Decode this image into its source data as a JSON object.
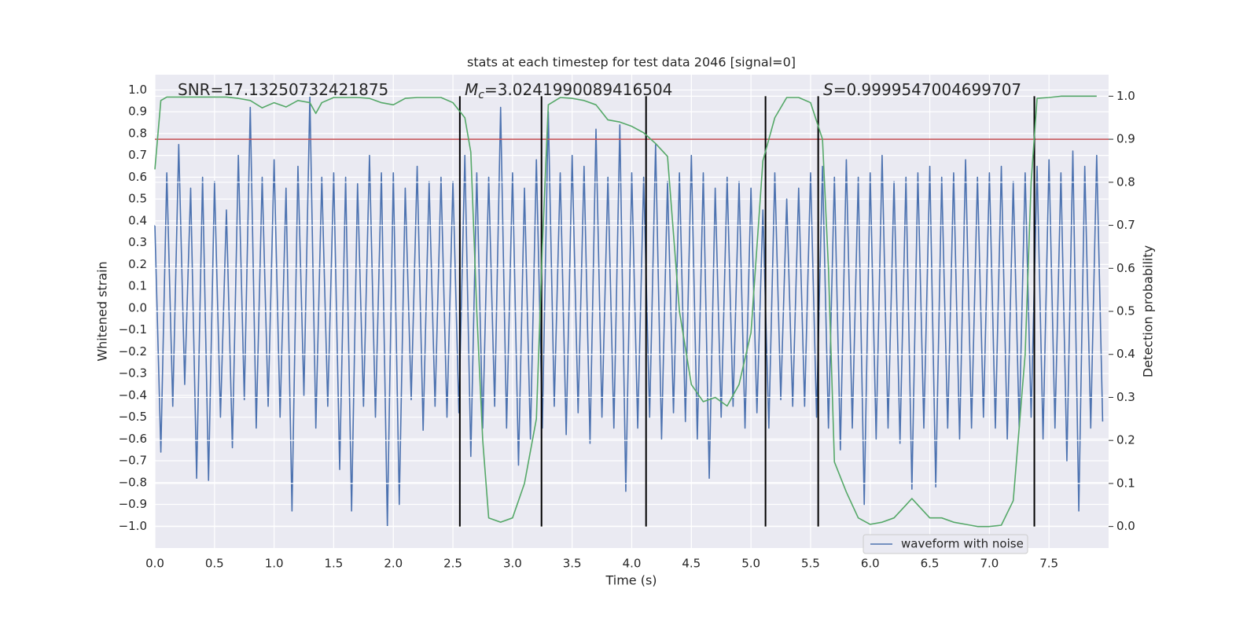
{
  "chart_data": {
    "type": "line",
    "title": "stats at each timestep for test data 2046 [signal=0]",
    "xlabel": "Time (s)",
    "ylabel": "Whitened strain",
    "y2label": "Detection probability",
    "xlim": [
      0,
      8
    ],
    "ylim": [
      -1.1,
      1.07
    ],
    "y2lim": [
      -0.05,
      1.05
    ],
    "xticks": [
      {
        "value": 0,
        "label": "0.0"
      },
      {
        "value": 0.5,
        "label": "0.5"
      },
      {
        "value": 1,
        "label": "1.0"
      },
      {
        "value": 1.5,
        "label": "1.5"
      },
      {
        "value": 2,
        "label": "2.0"
      },
      {
        "value": 2.5,
        "label": "2.5"
      },
      {
        "value": 3,
        "label": "3.0"
      },
      {
        "value": 3.5,
        "label": "3.5"
      },
      {
        "value": 4,
        "label": "4.0"
      },
      {
        "value": 4.5,
        "label": "4.5"
      },
      {
        "value": 5,
        "label": "5.0"
      },
      {
        "value": 5.5,
        "label": "5.5"
      },
      {
        "value": 6,
        "label": "6.0"
      },
      {
        "value": 6.5,
        "label": "6.5"
      },
      {
        "value": 7,
        "label": "7.0"
      },
      {
        "value": 7.5,
        "label": "7.5"
      }
    ],
    "yticks": [
      {
        "value": -1,
        "label": "−1.0"
      },
      {
        "value": -0.9,
        "label": "−0.9"
      },
      {
        "value": -0.8,
        "label": "−0.8"
      },
      {
        "value": -0.7,
        "label": "−0.7"
      },
      {
        "value": -0.6,
        "label": "−0.6"
      },
      {
        "value": -0.5,
        "label": "−0.5"
      },
      {
        "value": -0.4,
        "label": "−0.4"
      },
      {
        "value": -0.3,
        "label": "−0.3"
      },
      {
        "value": -0.2,
        "label": "−0.2"
      },
      {
        "value": -0.1,
        "label": "−0.1"
      },
      {
        "value": 0,
        "label": "0.0"
      },
      {
        "value": 0.1,
        "label": "0.1"
      },
      {
        "value": 0.2,
        "label": "0.2"
      },
      {
        "value": 0.3,
        "label": "0.3"
      },
      {
        "value": 0.4,
        "label": "0.4"
      },
      {
        "value": 0.5,
        "label": "0.5"
      },
      {
        "value": 0.6,
        "label": "0.6"
      },
      {
        "value": 0.7,
        "label": "0.7"
      },
      {
        "value": 0.8,
        "label": "0.8"
      },
      {
        "value": 0.9,
        "label": "0.9"
      },
      {
        "value": 1,
        "label": "1.0"
      }
    ],
    "y2ticks": [
      {
        "value": 0,
        "label": "0.0"
      },
      {
        "value": 0.1,
        "label": "0.1"
      },
      {
        "value": 0.2,
        "label": "0.2"
      },
      {
        "value": 0.3,
        "label": "0.3"
      },
      {
        "value": 0.4,
        "label": "0.4"
      },
      {
        "value": 0.5,
        "label": "0.5"
      },
      {
        "value": 0.6,
        "label": "0.6"
      },
      {
        "value": 0.7,
        "label": "0.7"
      },
      {
        "value": 0.8,
        "label": "0.8"
      },
      {
        "value": 0.9,
        "label": "0.9"
      },
      {
        "value": 1,
        "label": "1.0"
      }
    ],
    "grid": true,
    "background": "#eaeaf2",
    "legend": "lower right",
    "series": [
      {
        "name": "waveform with noise",
        "color": "#4c72b0",
        "x": [
          0,
          0.05,
          0.1,
          0.15,
          0.2,
          0.25,
          0.3,
          0.35,
          0.4,
          0.45,
          0.5,
          0.55,
          0.6,
          0.65,
          0.7,
          0.75,
          0.8,
          0.85,
          0.9,
          0.95,
          1,
          1.05,
          1.1,
          1.15,
          1.2,
          1.25,
          1.3,
          1.35,
          1.4,
          1.45,
          1.5,
          1.55,
          1.6,
          1.65,
          1.7,
          1.75,
          1.8,
          1.85,
          1.9,
          1.95,
          2,
          2.05,
          2.1,
          2.15,
          2.2,
          2.25,
          2.3,
          2.35,
          2.4,
          2.45,
          2.5,
          2.55,
          2.6,
          2.65,
          2.7,
          2.75,
          2.8,
          2.85,
          2.9,
          2.95,
          3,
          3.05,
          3.1,
          3.15,
          3.2,
          3.25,
          3.3,
          3.35,
          3.4,
          3.45,
          3.5,
          3.55,
          3.6,
          3.65,
          3.7,
          3.75,
          3.8,
          3.85,
          3.9,
          3.95,
          4,
          4.05,
          4.1,
          4.15,
          4.2,
          4.25,
          4.3,
          4.35,
          4.4,
          4.45,
          4.5,
          4.55,
          4.6,
          4.65,
          4.7,
          4.75,
          4.8,
          4.85,
          4.9,
          4.95,
          5,
          5.05,
          5.1,
          5.15,
          5.2,
          5.25,
          5.3,
          5.35,
          5.4,
          5.45,
          5.5,
          5.55,
          5.6,
          5.65,
          5.7,
          5.75,
          5.8,
          5.85,
          5.9,
          5.95,
          6,
          6.05,
          6.1,
          6.15,
          6.2,
          6.25,
          6.3,
          6.35,
          6.4,
          6.45,
          6.5,
          6.55,
          6.6,
          6.65,
          6.7,
          6.75,
          6.8,
          6.85,
          6.9,
          6.95,
          7,
          7.05,
          7.1,
          7.15,
          7.2,
          7.25,
          7.3,
          7.35,
          7.4,
          7.45,
          7.5,
          7.55,
          7.6,
          7.65,
          7.7,
          7.75,
          7.8,
          7.85,
          7.9,
          7.95
        ],
        "values": [
          0.38,
          -0.66,
          0.62,
          -0.45,
          0.75,
          -0.35,
          0.55,
          -0.78,
          0.6,
          -0.79,
          0.58,
          -0.5,
          0.45,
          -0.64,
          0.7,
          -0.42,
          0.92,
          -0.55,
          0.6,
          -0.45,
          0.68,
          -0.5,
          0.55,
          -0.93,
          0.65,
          -0.4,
          0.97,
          -0.55,
          0.6,
          -0.45,
          0.62,
          -0.74,
          0.6,
          -0.93,
          0.57,
          -0.45,
          0.7,
          -0.5,
          0.62,
          -1.0,
          0.62,
          -0.9,
          0.55,
          -0.42,
          0.65,
          -0.56,
          0.58,
          -0.45,
          0.6,
          -0.5,
          0.58,
          -0.48,
          0.7,
          -0.68,
          0.62,
          -0.55,
          0.6,
          -0.45,
          0.92,
          -0.55,
          0.62,
          -0.72,
          0.55,
          -0.6,
          0.68,
          -0.55,
          0.9,
          -0.45,
          0.62,
          -0.58,
          0.7,
          -0.48,
          0.65,
          -0.62,
          0.82,
          -0.5,
          0.6,
          -0.55,
          0.84,
          -0.84,
          0.62,
          -0.55,
          0.6,
          -0.5,
          0.75,
          -0.6,
          0.58,
          -0.48,
          0.62,
          -0.52,
          0.7,
          -0.6,
          0.62,
          -0.78,
          0.55,
          -0.5,
          0.6,
          -0.45,
          0.58,
          -0.55,
          0.55,
          -0.48,
          0.45,
          -0.55,
          0.62,
          -0.42,
          0.5,
          -0.45,
          0.55,
          -0.45,
          0.62,
          -0.5,
          0.65,
          -0.55,
          0.6,
          -0.65,
          0.68,
          -0.55,
          0.6,
          -0.9,
          0.62,
          -0.6,
          0.7,
          -0.55,
          0.58,
          -0.62,
          0.6,
          -0.83,
          0.62,
          -0.55,
          0.65,
          -0.82,
          0.6,
          -0.55,
          0.62,
          -0.6,
          0.68,
          -0.55,
          0.6,
          -0.5,
          0.62,
          -0.55,
          0.65,
          -0.6,
          0.58,
          -0.55,
          0.62,
          -0.5,
          0.65,
          -0.6,
          0.68,
          -0.55,
          0.62,
          -0.7,
          0.72,
          -0.93,
          0.65,
          -0.55,
          0.7,
          -0.52
        ]
      },
      {
        "color": "#55a868",
        "axis": "y2",
        "x": [
          0,
          0.05,
          0.1,
          0.2,
          0.3,
          0.4,
          0.5,
          0.6,
          0.7,
          0.8,
          0.9,
          1,
          1.1,
          1.2,
          1.3,
          1.35,
          1.4,
          1.5,
          1.6,
          1.7,
          1.8,
          1.9,
          2,
          2.1,
          2.2,
          2.3,
          2.4,
          2.5,
          2.6,
          2.65,
          2.7,
          2.75,
          2.8,
          2.9,
          3,
          3.1,
          3.2,
          3.25,
          3.3,
          3.4,
          3.5,
          3.6,
          3.7,
          3.8,
          3.9,
          4,
          4.1,
          4.2,
          4.3,
          4.4,
          4.5,
          4.6,
          4.7,
          4.8,
          4.9,
          5,
          5.1,
          5.2,
          5.3,
          5.4,
          5.5,
          5.6,
          5.65,
          5.7,
          5.8,
          5.9,
          6,
          6.1,
          6.2,
          6.3,
          6.35,
          6.4,
          6.5,
          6.6,
          6.7,
          6.8,
          6.9,
          7,
          7.1,
          7.2,
          7.3,
          7.35,
          7.4,
          7.5,
          7.6,
          7.9
        ],
        "values": [
          0.83,
          0.99,
          0.998,
          0.998,
          0.998,
          0.998,
          0.998,
          0.998,
          0.995,
          0.99,
          0.973,
          0.985,
          0.975,
          0.99,
          0.985,
          0.96,
          0.985,
          0.997,
          0.997,
          0.997,
          0.995,
          0.985,
          0.98,
          0.995,
          0.997,
          0.997,
          0.997,
          0.985,
          0.95,
          0.87,
          0.5,
          0.2,
          0.02,
          0.01,
          0.02,
          0.1,
          0.25,
          0.65,
          0.98,
          0.997,
          0.995,
          0.99,
          0.98,
          0.945,
          0.94,
          0.93,
          0.915,
          0.89,
          0.86,
          0.5,
          0.33,
          0.29,
          0.3,
          0.28,
          0.33,
          0.45,
          0.85,
          0.95,
          0.997,
          0.997,
          0.985,
          0.9,
          0.6,
          0.15,
          0.08,
          0.02,
          0.005,
          0.01,
          0.02,
          0.05,
          0.065,
          0.05,
          0.02,
          0.02,
          0.01,
          0.005,
          0,
          0,
          0.003,
          0.06,
          0.4,
          0.8,
          0.995,
          0.997,
          1,
          1
        ]
      }
    ],
    "hline": {
      "y": 0.9,
      "axis": "y2",
      "color": "#c44e52"
    },
    "vlines": {
      "x": [
        2.558,
        3.243,
        4.12,
        5.122,
        5.564,
        7.377
      ],
      "ymin": 0,
      "ymax": 1,
      "axis": "y2",
      "color": "#000000"
    },
    "annotations": [
      {
        "text": "SNR=17.13250732421875"
      },
      {
        "symbol": "M",
        "subscript": "c",
        "text": "=3.0241990089416504"
      },
      {
        "symbol": "S",
        "text": "=0.9999547004699707"
      }
    ]
  }
}
